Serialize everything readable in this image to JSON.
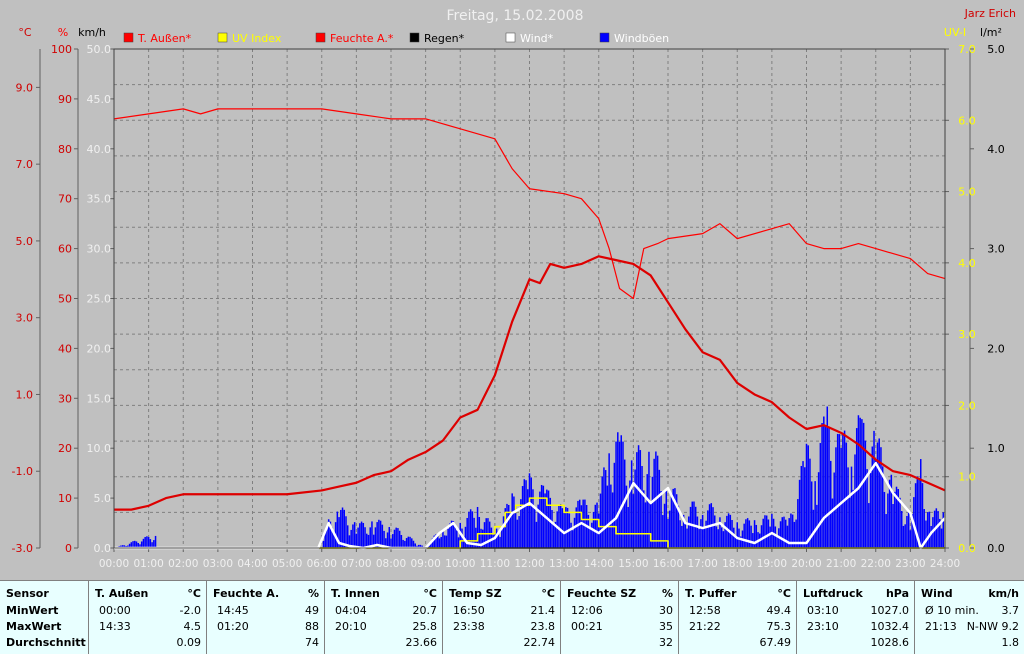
{
  "title": "Freitag, 15.02.2008",
  "author": "Jarz Erich",
  "colors": {
    "background": "#c0c0c0",
    "plot_background": "#c0c0c0",
    "grid": "#808080",
    "temperature": "#d00000",
    "humidity": "#ff0000",
    "uv": "#ffff00",
    "rain": "#000000",
    "wind": "#ffffff",
    "gusts": "#0000ff",
    "stats_background": "#e8ffff"
  },
  "axes": {
    "temp_unit": "°C",
    "hum_unit": "%",
    "wind_unit": "km/h",
    "uv_unit": "UV-I",
    "rain_unit": "l/m²",
    "temp_ticks": [
      "9.0",
      "7.0",
      "5.0",
      "3.0",
      "1.0",
      "-1.0",
      "-3.0"
    ],
    "hum_ticks": [
      "100",
      "90",
      "80",
      "70",
      "60",
      "50",
      "40",
      "30",
      "20",
      "10",
      "0"
    ],
    "wind_ticks": [
      "50.0",
      "45.0",
      "40.0",
      "35.0",
      "30.0",
      "25.0",
      "20.0",
      "15.0",
      "10.0",
      "5.0",
      "0.0"
    ],
    "uv_ticks": [
      "7.0",
      "6.0",
      "5.0",
      "4.0",
      "3.0",
      "2.0",
      "1.0",
      "0.0"
    ],
    "rain_ticks": [
      "5.0",
      "4.0",
      "3.0",
      "2.0",
      "1.0",
      "0.0"
    ],
    "x_ticks": [
      "00:00",
      "01:00",
      "02:00",
      "03:00",
      "04:00",
      "05:00",
      "06:00",
      "07:00",
      "08:00",
      "09:00",
      "10:00",
      "11:00",
      "12:00",
      "13:00",
      "14:00",
      "15:00",
      "16:00",
      "17:00",
      "18:00",
      "19:00",
      "20:00",
      "21:00",
      "22:00",
      "23:00",
      "24:00"
    ]
  },
  "legend": [
    {
      "label": "T. Außen*",
      "color": "#ff0000",
      "text_color": "#ff0000"
    },
    {
      "label": "UV Index",
      "color": "#ffff00",
      "text_color": "#ffff00"
    },
    {
      "label": "Feuchte A.*",
      "color": "#ff0000",
      "text_color": "#ff0000"
    },
    {
      "label": "Regen*",
      "color": "#000000",
      "text_color": "#000000"
    },
    {
      "label": "Wind*",
      "color": "#ffffff",
      "text_color": "#ffffff"
    },
    {
      "label": "Windböen",
      "color": "#0000ff",
      "text_color": "#ffffff"
    }
  ],
  "chart_data": {
    "type": "line",
    "title": "Freitag, 15.02.2008",
    "x_range": [
      "00:00",
      "24:00"
    ],
    "temp_range": [
      -3.0,
      10.0
    ],
    "hum_range": [
      0,
      100
    ],
    "wind_range": [
      0,
      50
    ],
    "uv_range": [
      0,
      7
    ],
    "rain_range": [
      0,
      5
    ],
    "grid": true,
    "series": [
      {
        "name": "T. Außen*",
        "axis": "temp",
        "x": [
          0,
          0.5,
          1,
          1.5,
          2,
          3,
          4,
          5,
          6,
          6.5,
          7,
          7.5,
          8,
          8.5,
          9,
          9.5,
          10,
          10.5,
          11,
          11.5,
          12,
          12.3,
          12.6,
          13,
          13.5,
          14,
          14.5,
          15,
          15.5,
          16,
          16.5,
          17,
          17.5,
          18,
          18.5,
          19,
          19.5,
          20,
          20.5,
          21,
          21.5,
          22,
          22.5,
          23,
          23.5,
          24
        ],
        "values": [
          -2.0,
          -2.0,
          -1.9,
          -1.7,
          -1.6,
          -1.6,
          -1.6,
          -1.6,
          -1.5,
          -1.4,
          -1.3,
          -1.1,
          -1.0,
          -0.7,
          -0.5,
          -0.2,
          0.4,
          0.6,
          1.5,
          2.9,
          4.0,
          3.9,
          4.4,
          4.3,
          4.4,
          4.6,
          4.5,
          4.4,
          4.1,
          3.4,
          2.7,
          2.1,
          1.9,
          1.3,
          1.0,
          0.8,
          0.4,
          0.1,
          0.2,
          0.0,
          -0.3,
          -0.7,
          -1.0,
          -1.1,
          -1.3,
          -1.5
        ]
      },
      {
        "name": "Feuchte A.*",
        "axis": "hum",
        "x": [
          0,
          1,
          2,
          2.5,
          3,
          4,
          5,
          6,
          7,
          8,
          9,
          10,
          11,
          11.5,
          12,
          13,
          13.5,
          14,
          14.3,
          14.6,
          15,
          15.3,
          15.7,
          16,
          17,
          17.5,
          18,
          19,
          19.5,
          20,
          20.5,
          21,
          21.5,
          22,
          22.5,
          23,
          23.5,
          24
        ],
        "values": [
          86,
          87,
          88,
          87,
          88,
          88,
          88,
          88,
          87,
          86,
          86,
          84,
          82,
          76,
          72,
          71,
          70,
          66,
          60,
          52,
          50,
          60,
          61,
          62,
          63,
          65,
          62,
          64,
          65,
          61,
          60,
          60,
          61,
          60,
          59,
          58,
          55,
          54
        ]
      },
      {
        "name": "UV Index",
        "axis": "uv",
        "x": [
          0,
          9.5,
          10,
          10.5,
          11,
          11.3,
          11.6,
          12,
          12.5,
          13,
          13.5,
          14,
          14.5,
          15,
          15.5,
          16,
          24
        ],
        "values": [
          0,
          0,
          0.1,
          0.2,
          0.3,
          0.5,
          0.6,
          0.7,
          0.6,
          0.5,
          0.4,
          0.3,
          0.2,
          0.2,
          0.1,
          0,
          0
        ]
      },
      {
        "name": "Regen*",
        "axis": "rain",
        "x": [
          0,
          24
        ],
        "values": [
          0,
          0
        ]
      },
      {
        "name": "Wind*",
        "axis": "wind",
        "x": [
          0,
          5.9,
          6.2,
          6.5,
          6.8,
          7.2,
          7.6,
          8,
          9,
          9.4,
          9.8,
          10.2,
          10.6,
          11,
          11.5,
          12,
          12.5,
          13,
          13.5,
          14,
          14.5,
          15,
          15.5,
          16,
          16.5,
          17,
          17.5,
          18,
          18.5,
          19,
          19.5,
          20,
          20.5,
          21,
          21.5,
          22,
          22.5,
          23,
          23.3,
          23.6,
          24
        ],
        "values": [
          0,
          0,
          2.5,
          0.5,
          0.2,
          0,
          0.3,
          0,
          0,
          1.5,
          2.5,
          0.5,
          0.3,
          1.0,
          3.5,
          4.5,
          3.0,
          1.5,
          2.5,
          1.5,
          3.0,
          6.5,
          4.5,
          6.0,
          2.5,
          2.0,
          2.5,
          1.0,
          0.5,
          1.5,
          0.5,
          0.5,
          3.0,
          4.5,
          6.0,
          8.5,
          5.5,
          3.5,
          0,
          1.5,
          3.0
        ]
      },
      {
        "name": "Windböen",
        "axis": "wind",
        "x": [
          0,
          1.2,
          1.25,
          6,
          6.2,
          6.5,
          7,
          7.5,
          8,
          9,
          9.5,
          10,
          10.5,
          11,
          11.5,
          12,
          12.5,
          13,
          13.5,
          14,
          14.3,
          14.6,
          15,
          15.5,
          16,
          16.5,
          17,
          17.5,
          18,
          18.5,
          19,
          19.5,
          20,
          20.3,
          20.6,
          21,
          21.3,
          21.6,
          22,
          22.5,
          23,
          23.3,
          23.6,
          24
        ],
        "values": [
          0,
          1.5,
          0,
          0,
          3.0,
          4.5,
          2.5,
          3.0,
          2.5,
          0,
          2.5,
          3.0,
          4.5,
          2.0,
          5.5,
          7.5,
          6.0,
          4.0,
          5.0,
          4.5,
          12.5,
          11.5,
          10.0,
          11.0,
          7.0,
          4.5,
          5.0,
          4.0,
          3.0,
          3.0,
          3.5,
          3.0,
          10.5,
          11.0,
          14.5,
          11.0,
          14.5,
          13.0,
          12.0,
          7.0,
          3.5,
          9.5,
          3.0,
          6.0
        ]
      }
    ]
  },
  "stats": {
    "row_labels": [
      "Sensor",
      "MinWert",
      "MaxWert",
      "Durchschnitt"
    ],
    "groups": [
      {
        "name": "T. Außen",
        "unit": "°C",
        "min_time": "00:00",
        "min": "-2.0",
        "max_time": "14:33",
        "max": "4.5",
        "avg": "0.09"
      },
      {
        "name": "Feuchte A.",
        "unit": "%",
        "min_time": "14:45",
        "min": "49",
        "max_time": "01:20",
        "max": "88",
        "avg": "74"
      },
      {
        "name": "T. Innen",
        "unit": "°C",
        "min_time": "04:04",
        "min": "20.7",
        "max_time": "20:10",
        "max": "25.8",
        "avg": "23.66"
      },
      {
        "name": "Temp SZ",
        "unit": "°C",
        "min_time": "16:50",
        "min": "21.4",
        "max_time": "23:38",
        "max": "23.8",
        "avg": "22.74"
      },
      {
        "name": "Feuchte SZ",
        "unit": "%",
        "min_time": "12:06",
        "min": "30",
        "max_time": "00:21",
        "max": "35",
        "avg": "32"
      },
      {
        "name": "T. Puffer",
        "unit": "°C",
        "min_time": "12:58",
        "min": "49.4",
        "max_time": "21:22",
        "max": "75.3",
        "avg": "67.49"
      },
      {
        "name": "Luftdruck",
        "unit": "hPa",
        "min_time": "03:10",
        "min": "1027.0",
        "max_time": "23:10",
        "max": "1032.4",
        "avg": "1028.6"
      },
      {
        "name": "Wind",
        "unit": "km/h",
        "min_time": "Ø 10 min.",
        "min": "3.7",
        "max_time": "21:13",
        "max": "N-NW 9.2",
        "avg": "1.8"
      }
    ]
  }
}
